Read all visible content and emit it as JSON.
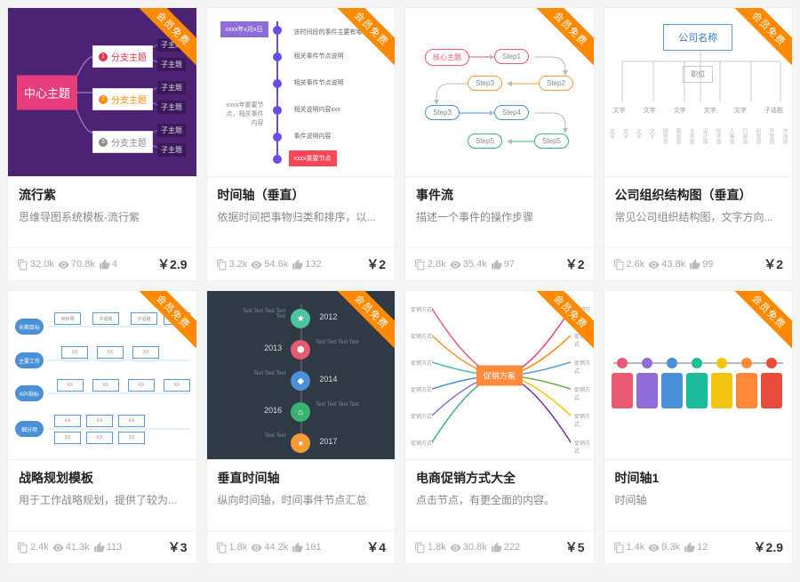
{
  "ribbon_label": "会员免费",
  "cards": [
    {
      "title": "流行紫",
      "desc": "思维导图系统模板-流行紫",
      "copies": "32.0k",
      "views": "70.8k",
      "likes": "4",
      "price": "￥2.9",
      "thumb1": {
        "center": "中心主题",
        "branches": [
          "分支主题",
          "分支主题",
          "分支主题"
        ],
        "branch_colors": [
          "#e6324b",
          "#ff8a00",
          "#8e8e8e"
        ],
        "sub": "子主题"
      }
    },
    {
      "title": "时间轴（垂直）",
      "desc": "依据时间把事物归类和排序，以...",
      "copies": "3.2k",
      "views": "54.6k",
      "likes": "132",
      "price": "￥2"
    },
    {
      "title": "事件流",
      "desc": "描述一个事件的操作步骤",
      "copies": "2.8k",
      "views": "35.4k",
      "likes": "97",
      "price": "￥2",
      "thumb3": {
        "steps": [
          "Step1",
          "Step2",
          "Step3",
          "Step4",
          "Step5"
        ]
      }
    },
    {
      "title": "公司组织结构图（垂直）",
      "desc": "常见公司组织结构图，文字方向...",
      "copies": "2.6k",
      "views": "43.8k",
      "likes": "99",
      "price": "￥2",
      "thumb4": {
        "root": "公司名称",
        "sub": "职位",
        "row": [
          "文字",
          "文字",
          "文字",
          "文字",
          "文字",
          "子话题"
        ]
      }
    },
    {
      "title": "战略规划模板",
      "desc": "用于工作战略规划，提供了较为...",
      "copies": "2.4k",
      "views": "41.3k",
      "likes": "113",
      "price": "￥3"
    },
    {
      "title": "垂直时间轴",
      "desc": "纵向时间轴，时间事件节点汇总",
      "copies": "1.8k",
      "views": "44.2k",
      "likes": "161",
      "price": "￥4",
      "thumb6": {
        "years": [
          "2012",
          "2013",
          "2014",
          "2016",
          "2017"
        ],
        "colors": [
          "#4fc3a1",
          "#e85a71",
          "#4a90d9",
          "#3bb273",
          "#f29c33"
        ]
      }
    },
    {
      "title": "电商促销方式大全",
      "desc": "点击节点，有更全面的内容。",
      "copies": "1.8k",
      "views": "30.8k",
      "likes": "222",
      "price": "￥5",
      "thumb7": {
        "center": "促销方案",
        "colors": [
          "#e85a71",
          "#f29c33",
          "#4fc3a1",
          "#4a90d9",
          "#8e6dd7",
          "#3bb273",
          "#e63e7c",
          "#ff8a00",
          "#5b9bd5",
          "#70ad47",
          "#ffc000",
          "#7030a0"
        ]
      }
    },
    {
      "title": "时间轴1",
      "desc": "时间轴",
      "copies": "1.4k",
      "views": "9.3k",
      "likes": "12",
      "price": "￥2.9",
      "thumb8": {
        "colors": [
          "#e85a71",
          "#8e6dd7",
          "#4a90d9",
          "#1bbc9b",
          "#f1c40f",
          "#ff8a3c",
          "#e74c3c"
        ]
      }
    }
  ]
}
